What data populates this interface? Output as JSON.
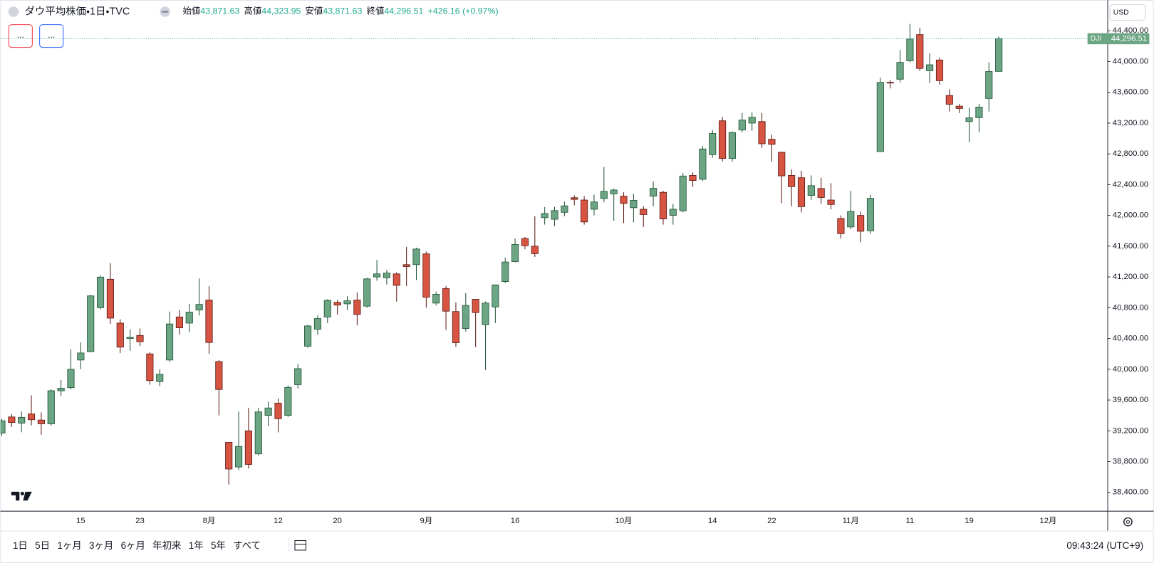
{
  "header": {
    "ohlc": [
      {
        "label": "始値",
        "value": "43,871.63"
      },
      {
        "label": "高値",
        "value": "44,323.95"
      },
      {
        "label": "安値",
        "value": "43,871.63"
      },
      {
        "label": "終値",
        "value": "44,296.51"
      }
    ],
    "change": "+426.16 (+0.97%)",
    "buttons": [
      "...",
      "..."
    ],
    "currency": "USD"
  },
  "toolbar": {
    "ranges": [
      "1日",
      "5日",
      "1ヶ月",
      "3ヶ月",
      "6ヶ月",
      "年初来",
      "1年",
      "5年",
      "すべて"
    ],
    "clock": "09:43:24 (UTC+9)"
  },
  "chart_data": {
    "type": "candlestick",
    "title": "ダウ平均株価・1日・TVC",
    "up_color": "#6ba583",
    "down_color": "#d75442",
    "grid": false,
    "ylim": [
      38160,
      44800
    ],
    "yticks": [
      {
        "value": 38400,
        "label": "38,400.00"
      },
      {
        "value": 38800,
        "label": "38,800.00"
      },
      {
        "value": 39200,
        "label": "39,200.00"
      },
      {
        "value": 39600,
        "label": "39,600.00"
      },
      {
        "value": 40000,
        "label": "40,000.00"
      },
      {
        "value": 40400,
        "label": "40,400.00"
      },
      {
        "value": 40800,
        "label": "40,800.00"
      },
      {
        "value": 41200,
        "label": "41,200.00"
      },
      {
        "value": 41600,
        "label": "41,600.00"
      },
      {
        "value": 42000,
        "label": "42,000.00"
      },
      {
        "value": 42400,
        "label": "42,400.00"
      },
      {
        "value": 42800,
        "label": "42,800.00"
      },
      {
        "value": 43200,
        "label": "43,200.00"
      },
      {
        "value": 43600,
        "label": "43,600.00"
      },
      {
        "value": 44000,
        "label": "44,000.00"
      },
      {
        "value": 44400,
        "label": "44,400.00"
      }
    ],
    "last_price": {
      "symbol": "DJI",
      "value": 44296.51,
      "label": "44,296.51"
    },
    "categories": [
      null,
      null,
      null,
      null,
      null,
      null,
      null,
      null,
      "15",
      null,
      null,
      null,
      null,
      null,
      "23",
      null,
      null,
      null,
      null,
      null,
      null,
      "8月",
      null,
      null,
      null,
      null,
      null,
      null,
      "12",
      null,
      null,
      null,
      null,
      null,
      "20",
      null,
      null,
      null,
      null,
      null,
      null,
      null,
      null,
      "9月",
      null,
      null,
      null,
      null,
      null,
      null,
      null,
      null,
      "16",
      null,
      null,
      null,
      null,
      null,
      null,
      null,
      null,
      null,
      null,
      "10月",
      null,
      null,
      null,
      null,
      null,
      null,
      null,
      null,
      "14",
      null,
      null,
      null,
      null,
      null,
      "22",
      null,
      null,
      null,
      null,
      null,
      null,
      null,
      "11月",
      null,
      null,
      null,
      null,
      null,
      "11",
      null,
      null,
      null,
      null,
      null,
      "19",
      null,
      null,
      null,
      null,
      null,
      null,
      null,
      "12月",
      null,
      null,
      null,
      null,
      null
    ],
    "open": [
      39170,
      39380,
      39300,
      39420,
      39340,
      39290,
      39720,
      39760,
      40120,
      40230,
      40800,
      41170,
      40600,
      40400,
      40440,
      40200,
      39840,
      40120,
      40680,
      40600,
      40770,
      40900,
      40100,
      39050,
      38730,
      39200,
      38900,
      39400,
      39560,
      39400,
      39800,
      40300,
      40520,
      40680,
      40870,
      40850,
      40900,
      40820,
      41200,
      41190,
      41240,
      41360,
      41360,
      41500,
      40860,
      41050,
      40750,
      40530,
      40910,
      40580,
      40810,
      41140,
      41400,
      41700,
      41600,
      41970,
      41950,
      42040,
      42230,
      42200,
      42080,
      42220,
      42280,
      42250,
      42100,
      42080,
      42250,
      42300,
      42000,
      42060,
      42520,
      42470,
      42790,
      43230,
      42740,
      43110,
      43200,
      43220,
      42990,
      42820,
      42520,
      42490,
      42260,
      42350,
      42200,
      41960,
      41850,
      42000,
      41800,
      42830,
      43730,
      43770,
      44010,
      44350,
      43880,
      44020,
      43560,
      43420,
      43220,
      43270,
      43520,
      43871.63,
      null,
      null,
      null,
      null,
      null,
      null,
      null,
      null,
      null,
      null
    ],
    "high": [
      39360,
      39420,
      39450,
      39660,
      39440,
      39740,
      39860,
      40260,
      40350,
      40970,
      41220,
      41380,
      40650,
      40520,
      40530,
      40220,
      40000,
      40750,
      40770,
      40850,
      41180,
      41080,
      40120,
      39050,
      39450,
      39500,
      39500,
      39580,
      39620,
      39790,
      40070,
      40580,
      40700,
      40910,
      40900,
      40950,
      41000,
      41190,
      41420,
      41290,
      41260,
      41590,
      41580,
      41530,
      41010,
      41080,
      40870,
      40990,
      40910,
      40880,
      41100,
      41450,
      41700,
      41720,
      41990,
      42110,
      42110,
      42180,
      42260,
      42250,
      42270,
      42630,
      42350,
      42300,
      42280,
      42120,
      42440,
      42320,
      42150,
      42550,
      42560,
      42900,
      43110,
      43280,
      43090,
      43330,
      43340,
      43330,
      43050,
      42830,
      42600,
      42580,
      42520,
      42490,
      42420,
      42000,
      42320,
      42050,
      42270,
      43790,
      43760,
      44150,
      44490,
      44440,
      44110,
      44050,
      43640,
      43450,
      43400,
      43450,
      43990,
      44323.95,
      null,
      null,
      null,
      null,
      null,
      null,
      null,
      null,
      null,
      null
    ],
    "low": [
      39130,
      39250,
      39180,
      39270,
      39150,
      39270,
      39650,
      39740,
      40000,
      40220,
      40780,
      40590,
      40210,
      40240,
      40300,
      39800,
      39780,
      40100,
      40450,
      40480,
      40700,
      40200,
      39400,
      38500,
      38690,
      38710,
      38880,
      39260,
      39180,
      39380,
      39750,
      40280,
      40450,
      40600,
      40710,
      40770,
      40570,
      40800,
      41150,
      41100,
      40880,
      41080,
      41160,
      40800,
      40830,
      40510,
      40290,
      40490,
      40290,
      39990,
      40600,
      41120,
      41390,
      41560,
      41460,
      41880,
      41860,
      41990,
      42130,
      41880,
      42000,
      42170,
      41930,
      41900,
      41910,
      41850,
      42120,
      41880,
      41880,
      42040,
      42370,
      42450,
      42750,
      42700,
      42700,
      43080,
      43100,
      42880,
      42700,
      42160,
      42120,
      42040,
      42200,
      42150,
      42080,
      41700,
      41820,
      41650,
      41760,
      42830,
      43650,
      43730,
      43990,
      43880,
      43720,
      43700,
      43350,
      43330,
      42950,
      43080,
      43350,
      43871.63,
      null,
      null,
      null,
      null,
      null,
      null,
      null,
      null,
      null,
      null
    ],
    "close": [
      39331,
      39308,
      39375,
      39344,
      39291,
      39721,
      39753,
      40000,
      40212,
      40954,
      41198,
      40665,
      40288,
      40415,
      40358,
      39853,
      39935,
      40589,
      40539,
      40743,
      40843,
      40348,
      39737,
      38703,
      38997,
      38763,
      39446,
      39497,
      39357,
      39765,
      40008,
      40563,
      40659,
      40896,
      40834,
      40890,
      40713,
      41175,
      41240,
      41250,
      41091,
      41335,
      41563,
      40936,
      40975,
      40755,
      40345,
      40830,
      40737,
      40861,
      41097,
      41394,
      41622,
      41606,
      41503,
      42025,
      42063,
      42124,
      42208,
      41915,
      42175,
      42313,
      42330,
      42156,
      42196,
      42011,
      42352,
      41954,
      42080,
      42512,
      42454,
      42864,
      43065,
      42740,
      43077,
      43239,
      43275,
      42931,
      42924,
      42514,
      42374,
      42114,
      42387,
      42233,
      42142,
      41763,
      42052,
      41794,
      42222,
      43729,
      43729,
      43989,
      44293,
      43910,
      43958,
      43751,
      43445,
      43390,
      43268,
      43408,
      43870,
      44296.51,
      null,
      null,
      null,
      null,
      null,
      null,
      null,
      null,
      null,
      null
    ]
  }
}
